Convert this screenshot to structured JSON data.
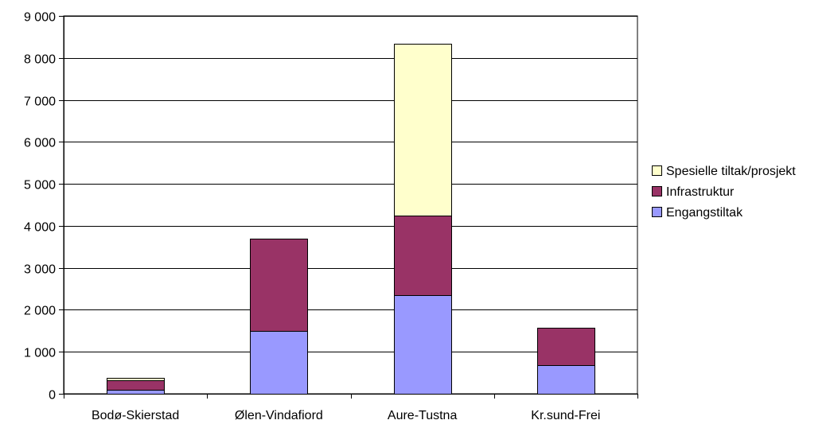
{
  "chart_data": {
    "type": "bar",
    "stacked": true,
    "categories": [
      "Bodø-Skierstad",
      "Ølen-Vindafiord",
      "Aure-Tustna",
      "Kr.sund-Frei"
    ],
    "series": [
      {
        "name": "Engangstiltak",
        "values": [
          100,
          1500,
          2350,
          680
        ],
        "color": "#9999ff"
      },
      {
        "name": "Infrastruktur",
        "values": [
          220,
          2200,
          1900,
          890
        ],
        "color": "#993366"
      },
      {
        "name": "Spesielle tiltak/prosjekt",
        "values": [
          60,
          0,
          4090,
          0
        ],
        "color": "#ffffcc"
      }
    ],
    "y_ticks": [
      "0",
      "1 000",
      "2 000",
      "3 000",
      "4 000",
      "5 000",
      "6 000",
      "7 000",
      "8 000",
      "9 000"
    ],
    "ylim": [
      0,
      9000
    ],
    "grid": true,
    "legend_position": "right",
    "legend_order": [
      "Spesielle tiltak/prosjekt",
      "Infrastruktur",
      "Engangstiltak"
    ]
  }
}
